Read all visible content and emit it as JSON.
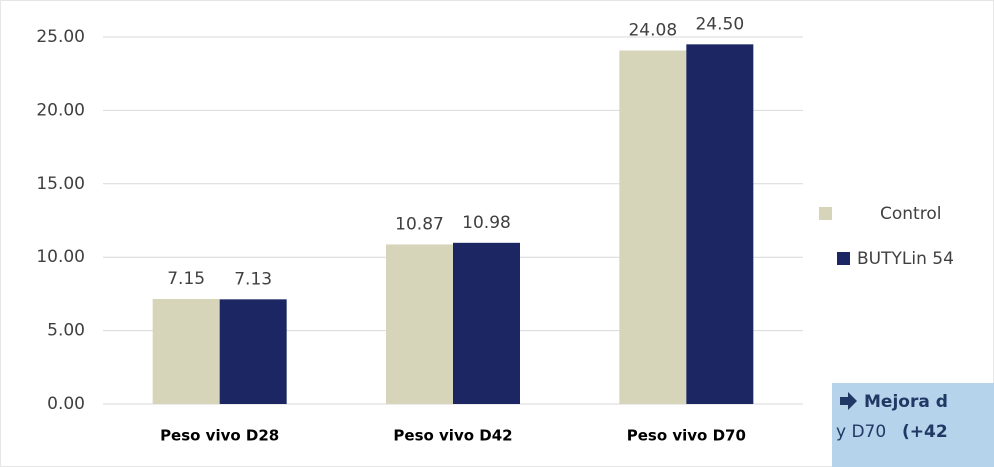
{
  "chart_data": {
    "type": "bar",
    "categories": [
      "Peso vivo D28",
      "Peso vivo D42",
      "Peso vivo D70"
    ],
    "series": [
      {
        "name": "Control",
        "color": "#d6d5b9",
        "values": [
          7.15,
          10.87,
          24.08
        ],
        "value_labels": [
          "7.15",
          "10.87",
          "24.08"
        ]
      },
      {
        "name": "BUTYLin 54",
        "color": "#1b2662",
        "values": [
          7.13,
          10.98,
          24.5
        ],
        "value_labels": [
          "7.13",
          "10.98",
          "24.50"
        ]
      }
    ],
    "ylim": [
      0,
      25
    ],
    "yticks": [
      {
        "value": 0,
        "label": "0.00"
      },
      {
        "value": 5,
        "label": "5.00"
      },
      {
        "value": 10,
        "label": "10.00"
      },
      {
        "value": 15,
        "label": "15.00"
      },
      {
        "value": 20,
        "label": "20.00"
      },
      {
        "value": 25,
        "label": "25.00"
      }
    ],
    "grid": true,
    "legend": "right",
    "annotations": [
      "Mejora d",
      "y D70",
      "(+42"
    ]
  }
}
